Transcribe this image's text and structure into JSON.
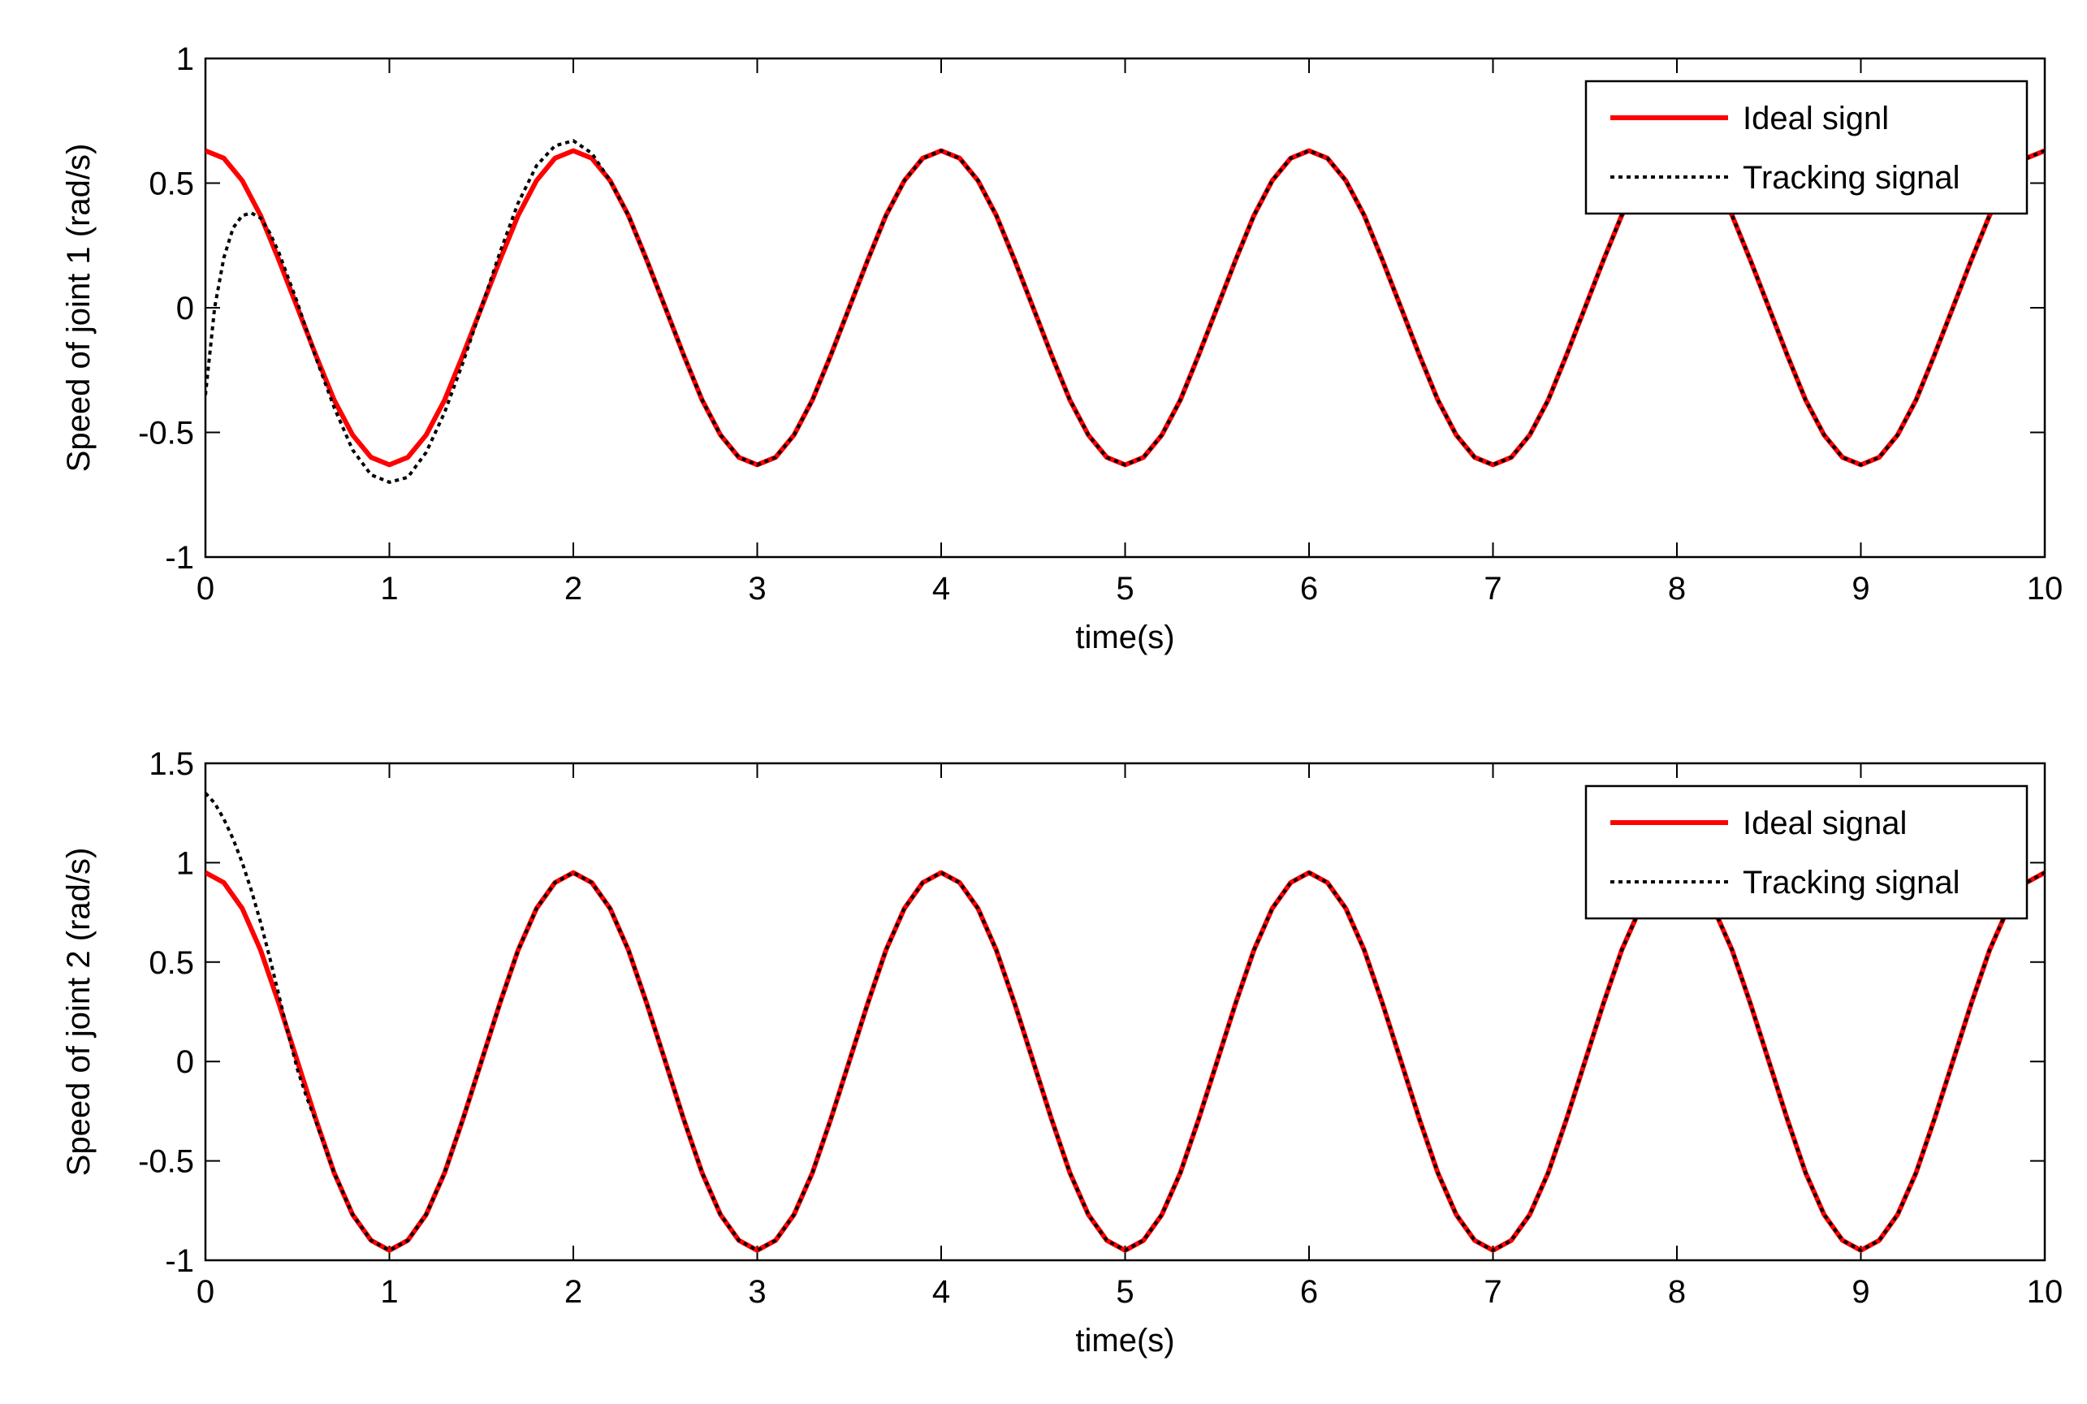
{
  "colors": {
    "ideal": "#ff0000",
    "tracking": "#000000",
    "axes": "#000000",
    "background": "#ffffff"
  },
  "chart_data": [
    {
      "type": "line",
      "xlabel": "time(s)",
      "ylabel": "Speed of joint 1  (rad/s)",
      "xlim": [
        0,
        10
      ],
      "ylim": [
        -1,
        1
      ],
      "xticks": [
        "0",
        "1",
        "2",
        "3",
        "4",
        "5",
        "6",
        "7",
        "8",
        "9",
        "10"
      ],
      "yticks": [
        "-1",
        "-0.5",
        "0",
        "0.5",
        "1"
      ],
      "grid": false,
      "legend_position": "top-right",
      "series": [
        {
          "name": "Ideal signl",
          "style": "solid",
          "color": "#ff0000",
          "x": [
            0,
            0.1,
            0.2,
            0.3,
            0.4,
            0.5,
            0.6,
            0.7,
            0.8,
            0.9,
            1.0,
            1.1,
            1.2,
            1.3,
            1.4,
            1.5,
            1.6,
            1.7,
            1.8,
            1.9,
            2.0,
            2.1,
            2.2,
            2.3,
            2.4,
            2.5,
            2.6,
            2.7,
            2.8,
            2.9,
            3.0,
            3.1,
            3.2,
            3.3,
            3.4,
            3.5,
            3.6,
            3.7,
            3.8,
            3.9,
            4.0,
            4.1,
            4.2,
            4.3,
            4.4,
            4.5,
            4.6,
            4.7,
            4.8,
            4.9,
            5.0,
            5.1,
            5.2,
            5.3,
            5.4,
            5.5,
            5.6,
            5.7,
            5.8,
            5.9,
            6.0,
            6.1,
            6.2,
            6.3,
            6.4,
            6.5,
            6.6,
            6.7,
            6.8,
            6.9,
            7.0,
            7.1,
            7.2,
            7.3,
            7.4,
            7.5,
            7.6,
            7.7,
            7.8,
            7.9,
            8.0,
            8.1,
            8.2,
            8.3,
            8.4,
            8.5,
            8.6,
            8.7,
            8.8,
            8.9,
            9.0,
            9.1,
            9.2,
            9.3,
            9.4,
            9.5,
            9.6,
            9.7,
            9.8,
            9.9,
            10.0
          ],
          "y": [
            0.63,
            0.6,
            0.51,
            0.37,
            0.19,
            0.0,
            -0.19,
            -0.37,
            -0.51,
            -0.6,
            -0.63,
            -0.6,
            -0.51,
            -0.37,
            -0.19,
            0.0,
            0.19,
            0.37,
            0.51,
            0.6,
            0.63,
            0.6,
            0.51,
            0.37,
            0.19,
            0.0,
            -0.19,
            -0.37,
            -0.51,
            -0.6,
            -0.63,
            -0.6,
            -0.51,
            -0.37,
            -0.19,
            0.0,
            0.19,
            0.37,
            0.51,
            0.6,
            0.63,
            0.6,
            0.51,
            0.37,
            0.19,
            0.0,
            -0.19,
            -0.37,
            -0.51,
            -0.6,
            -0.63,
            -0.6,
            -0.51,
            -0.37,
            -0.19,
            0.0,
            0.19,
            0.37,
            0.51,
            0.6,
            0.63,
            0.6,
            0.51,
            0.37,
            0.19,
            0.0,
            -0.19,
            -0.37,
            -0.51,
            -0.6,
            -0.63,
            -0.6,
            -0.51,
            -0.37,
            -0.19,
            0.0,
            0.19,
            0.37,
            0.51,
            0.6,
            0.63,
            0.6,
            0.51,
            0.37,
            0.19,
            0.0,
            -0.19,
            -0.37,
            -0.51,
            -0.6,
            -0.63,
            -0.6,
            -0.51,
            -0.37,
            -0.19,
            0.0,
            0.19,
            0.37,
            0.51,
            0.6,
            0.63
          ]
        },
        {
          "name": "Tracking signal",
          "style": "dotted",
          "color": "#000000",
          "x": [
            0,
            0.05,
            0.1,
            0.15,
            0.2,
            0.25,
            0.3,
            0.35,
            0.4,
            0.45,
            0.5,
            0.6,
            0.7,
            0.8,
            0.9,
            1.0,
            1.1,
            1.2,
            1.3,
            1.4,
            1.5,
            1.6,
            1.7,
            1.8,
            1.9,
            2.0,
            2.1,
            2.2,
            2.3,
            2.4,
            2.5,
            2.6,
            2.7,
            2.8,
            2.9,
            3.0,
            3.1,
            3.2,
            3.3,
            3.4,
            3.5,
            3.6,
            3.7,
            3.8,
            3.9,
            4.0,
            4.1,
            4.2,
            4.3,
            4.4,
            4.5,
            4.6,
            4.7,
            4.8,
            4.9,
            5.0,
            5.1,
            5.2,
            5.3,
            5.4,
            5.5,
            5.6,
            5.7,
            5.8,
            5.9,
            6.0,
            6.1,
            6.2,
            6.3,
            6.4,
            6.5,
            6.6,
            6.7,
            6.8,
            6.9,
            7.0,
            7.1,
            7.2,
            7.3,
            7.4,
            7.5,
            7.6,
            7.7,
            7.8,
            7.9,
            8.0,
            8.1,
            8.2,
            8.3,
            8.4,
            8.5,
            8.6,
            8.7,
            8.8,
            8.9,
            9.0,
            9.1,
            9.2,
            9.3,
            9.4,
            9.5,
            9.6,
            9.7,
            9.8,
            9.9,
            10.0
          ],
          "y": [
            -0.35,
            0.0,
            0.2,
            0.32,
            0.37,
            0.38,
            0.36,
            0.3,
            0.22,
            0.12,
            0.02,
            -0.2,
            -0.4,
            -0.57,
            -0.67,
            -0.7,
            -0.68,
            -0.58,
            -0.42,
            -0.22,
            0.0,
            0.22,
            0.42,
            0.57,
            0.65,
            0.67,
            0.62,
            0.51,
            0.37,
            0.19,
            0.0,
            -0.19,
            -0.37,
            -0.51,
            -0.6,
            -0.63,
            -0.6,
            -0.51,
            -0.37,
            -0.19,
            0.0,
            0.19,
            0.37,
            0.51,
            0.6,
            0.63,
            0.6,
            0.51,
            0.37,
            0.19,
            0.0,
            -0.19,
            -0.37,
            -0.51,
            -0.6,
            -0.63,
            -0.6,
            -0.51,
            -0.37,
            -0.19,
            0.0,
            0.19,
            0.37,
            0.51,
            0.6,
            0.63,
            0.6,
            0.51,
            0.37,
            0.19,
            0.0,
            -0.19,
            -0.37,
            -0.51,
            -0.6,
            -0.63,
            -0.6,
            -0.51,
            -0.37,
            -0.19,
            0.0,
            0.19,
            0.37,
            0.51,
            0.6,
            0.63,
            0.6,
            0.51,
            0.37,
            0.19,
            0.0,
            -0.19,
            -0.37,
            -0.51,
            -0.6,
            -0.63,
            -0.6,
            -0.51,
            -0.37,
            -0.19,
            0.0,
            0.19,
            0.37,
            0.51,
            0.6,
            0.63
          ]
        }
      ]
    },
    {
      "type": "line",
      "xlabel": "time(s)",
      "ylabel": "Speed of joint 2  (rad/s)",
      "xlim": [
        0,
        10
      ],
      "ylim": [
        -1,
        1.5
      ],
      "xticks": [
        "0",
        "1",
        "2",
        "3",
        "4",
        "5",
        "6",
        "7",
        "8",
        "9",
        "10"
      ],
      "yticks": [
        "-1",
        "-0.5",
        "0",
        "0.5",
        "1",
        "1.5"
      ],
      "grid": false,
      "legend_position": "top-right",
      "series": [
        {
          "name": "Ideal signal",
          "style": "solid",
          "color": "#ff0000",
          "x": [
            0,
            0.1,
            0.2,
            0.3,
            0.4,
            0.5,
            0.6,
            0.7,
            0.8,
            0.9,
            1.0,
            1.1,
            1.2,
            1.3,
            1.4,
            1.5,
            1.6,
            1.7,
            1.8,
            1.9,
            2.0,
            2.1,
            2.2,
            2.3,
            2.4,
            2.5,
            2.6,
            2.7,
            2.8,
            2.9,
            3.0,
            3.1,
            3.2,
            3.3,
            3.4,
            3.5,
            3.6,
            3.7,
            3.8,
            3.9,
            4.0,
            4.1,
            4.2,
            4.3,
            4.4,
            4.5,
            4.6,
            4.7,
            4.8,
            4.9,
            5.0,
            5.1,
            5.2,
            5.3,
            5.4,
            5.5,
            5.6,
            5.7,
            5.8,
            5.9,
            6.0,
            6.1,
            6.2,
            6.3,
            6.4,
            6.5,
            6.6,
            6.7,
            6.8,
            6.9,
            7.0,
            7.1,
            7.2,
            7.3,
            7.4,
            7.5,
            7.6,
            7.7,
            7.8,
            7.9,
            8.0,
            8.1,
            8.2,
            8.3,
            8.4,
            8.5,
            8.6,
            8.7,
            8.8,
            8.9,
            9.0,
            9.1,
            9.2,
            9.3,
            9.4,
            9.5,
            9.6,
            9.7,
            9.8,
            9.9,
            10.0
          ],
          "y": [
            0.95,
            0.9,
            0.77,
            0.56,
            0.29,
            0.0,
            -0.29,
            -0.56,
            -0.77,
            -0.9,
            -0.95,
            -0.9,
            -0.77,
            -0.56,
            -0.29,
            0.0,
            0.29,
            0.56,
            0.77,
            0.9,
            0.95,
            0.9,
            0.77,
            0.56,
            0.29,
            0.0,
            -0.29,
            -0.56,
            -0.77,
            -0.9,
            -0.95,
            -0.9,
            -0.77,
            -0.56,
            -0.29,
            0.0,
            0.29,
            0.56,
            0.77,
            0.9,
            0.95,
            0.9,
            0.77,
            0.56,
            0.29,
            0.0,
            -0.29,
            -0.56,
            -0.77,
            -0.9,
            -0.95,
            -0.9,
            -0.77,
            -0.56,
            -0.29,
            0.0,
            0.29,
            0.56,
            0.77,
            0.9,
            0.95,
            0.9,
            0.77,
            0.56,
            0.29,
            0.0,
            -0.29,
            -0.56,
            -0.77,
            -0.9,
            -0.95,
            -0.9,
            -0.77,
            -0.56,
            -0.29,
            0.0,
            0.29,
            0.56,
            0.77,
            0.9,
            0.95,
            0.9,
            0.77,
            0.56,
            0.29,
            0.0,
            -0.29,
            -0.56,
            -0.77,
            -0.9,
            -0.95,
            -0.9,
            -0.77,
            -0.56,
            -0.29,
            0.0,
            0.29,
            0.56,
            0.77,
            0.9,
            0.95
          ]
        },
        {
          "name": "Tracking signal",
          "style": "dotted",
          "color": "#000000",
          "x": [
            0,
            0.05,
            0.1,
            0.15,
            0.2,
            0.25,
            0.3,
            0.35,
            0.4,
            0.45,
            0.5,
            0.55,
            0.6,
            0.7,
            0.8,
            0.9,
            1.0,
            1.1,
            1.2,
            1.3,
            1.4,
            1.5,
            1.6,
            1.7,
            1.8,
            1.9,
            2.0,
            2.1,
            2.2,
            2.3,
            2.4,
            2.5,
            2.6,
            2.7,
            2.8,
            2.9,
            3.0,
            3.1,
            3.2,
            3.3,
            3.4,
            3.5,
            3.6,
            3.7,
            3.8,
            3.9,
            4.0,
            4.1,
            4.2,
            4.3,
            4.4,
            4.5,
            4.6,
            4.7,
            4.8,
            4.9,
            5.0,
            5.1,
            5.2,
            5.3,
            5.4,
            5.5,
            5.6,
            5.7,
            5.8,
            5.9,
            6.0,
            6.1,
            6.2,
            6.3,
            6.4,
            6.5,
            6.6,
            6.7,
            6.8,
            6.9,
            7.0,
            7.1,
            7.2,
            7.3,
            7.4,
            7.5,
            7.6,
            7.7,
            7.8,
            7.9,
            8.0,
            8.1,
            8.2,
            8.3,
            8.4,
            8.5,
            8.6,
            8.7,
            8.8,
            8.9,
            9.0,
            9.1,
            9.2,
            9.3,
            9.4,
            9.5,
            9.6,
            9.7,
            9.8,
            9.9,
            10.0
          ],
          "y": [
            1.35,
            1.3,
            1.22,
            1.12,
            1.0,
            0.86,
            0.7,
            0.52,
            0.33,
            0.14,
            -0.04,
            -0.18,
            -0.3,
            -0.56,
            -0.77,
            -0.9,
            -0.95,
            -0.9,
            -0.77,
            -0.56,
            -0.29,
            0.0,
            0.29,
            0.56,
            0.77,
            0.9,
            0.95,
            0.9,
            0.77,
            0.56,
            0.29,
            0.0,
            -0.29,
            -0.56,
            -0.77,
            -0.9,
            -0.95,
            -0.9,
            -0.77,
            -0.56,
            -0.29,
            0.0,
            0.29,
            0.56,
            0.77,
            0.9,
            0.95,
            0.9,
            0.77,
            0.56,
            0.29,
            0.0,
            -0.29,
            -0.56,
            -0.77,
            -0.9,
            -0.95,
            -0.9,
            -0.77,
            -0.56,
            -0.29,
            0.0,
            0.29,
            0.56,
            0.77,
            0.9,
            0.95,
            0.9,
            0.77,
            0.56,
            0.29,
            0.0,
            -0.29,
            -0.56,
            -0.77,
            -0.9,
            -0.95,
            -0.9,
            -0.77,
            -0.56,
            -0.29,
            0.0,
            0.29,
            0.56,
            0.77,
            0.9,
            0.95,
            0.9,
            0.77,
            0.56,
            0.29,
            0.0,
            -0.29,
            -0.56,
            -0.77,
            -0.9,
            -0.95,
            -0.9,
            -0.77,
            -0.56,
            -0.29,
            0.0,
            0.29,
            0.56,
            0.77,
            0.9,
            0.95
          ]
        }
      ]
    }
  ]
}
